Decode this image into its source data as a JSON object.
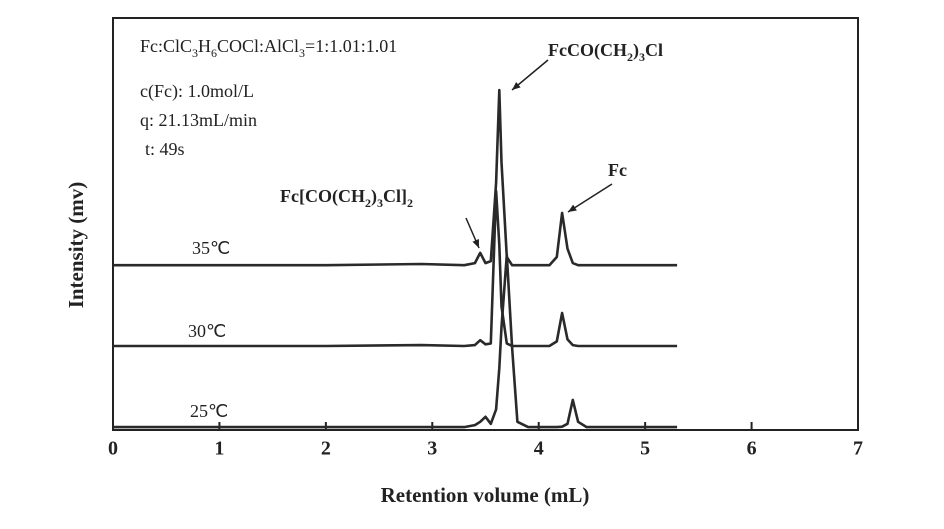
{
  "chart_data": {
    "type": "line",
    "x_label": "Retention volume (mL)",
    "y_label": "Intensity (mv)",
    "xlim": [
      0,
      7
    ],
    "xticks": [
      0,
      1,
      2,
      3,
      4,
      5,
      6,
      7
    ],
    "ylim": [
      0,
      100
    ],
    "x": [
      0,
      1,
      2,
      2.9,
      3.3,
      3.4,
      3.45,
      3.5,
      3.55,
      3.6,
      3.63,
      3.65,
      3.7,
      3.75,
      3.8,
      3.9,
      4.1,
      4.17,
      4.22,
      4.27,
      4.32,
      4.37,
      4.45,
      4.6,
      5.3
    ],
    "series": [
      {
        "name": "35℃",
        "color": "#2a2a2a",
        "values": [
          40,
          40,
          40,
          40.3,
          40,
          40.5,
          43,
          40.5,
          41,
          60,
          82.5,
          65,
          42,
          40,
          40,
          40,
          40,
          42,
          52.7,
          44,
          40.5,
          40,
          40,
          40,
          40
        ]
      },
      {
        "name": "30℃",
        "color": "#2a2a2a",
        "values": [
          20.4,
          20.4,
          20.4,
          20.6,
          20.4,
          20.6,
          21.8,
          20.8,
          21,
          58,
          45,
          30,
          21,
          20.4,
          20.4,
          20.4,
          20.4,
          21.5,
          28.4,
          22,
          20.6,
          20.4,
          20.4,
          20.4,
          20.4
        ]
      },
      {
        "name": "25℃",
        "color": "#2a2a2a",
        "values": [
          0.7,
          0.7,
          0.7,
          0.7,
          0.7,
          1.2,
          2,
          3.2,
          1.5,
          5,
          15,
          25,
          42.5,
          20,
          2,
          0.7,
          0.7,
          0.7,
          0.8,
          1.5,
          7.3,
          2,
          0.7,
          0.7,
          0.7
        ]
      }
    ],
    "annotations": [
      {
        "parts": [
          "Fc:ClC",
          "3",
          "H",
          "6",
          "COCl:AlCl",
          "3",
          "=1:1.01:1.01"
        ]
      },
      {
        "parts": [
          "c(Fc): 1.0mol/L"
        ]
      },
      {
        "parts": [
          "q: 21.13mL/min"
        ]
      },
      {
        "parts": [
          "t: 49s"
        ]
      },
      {
        "parts": [
          "FcCO(CH",
          "2",
          ")",
          "3",
          "Cl"
        ]
      },
      {
        "parts": [
          "Fc[CO(CH",
          "2",
          ")",
          "3",
          "Cl]",
          "2"
        ]
      },
      {
        "parts": [
          "Fc"
        ]
      }
    ]
  }
}
